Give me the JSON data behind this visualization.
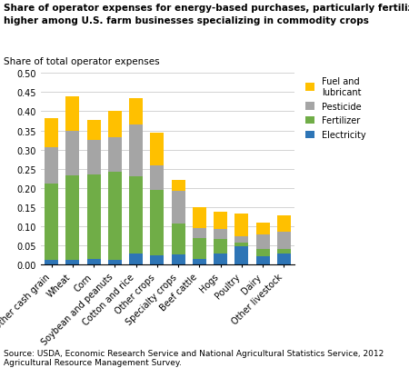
{
  "categories": [
    "Other cash grain",
    "Wheat",
    "Corn",
    "Soybean and peanuts",
    "Cotton and rice",
    "Other crops",
    "Specialty crops",
    "Beef cattle",
    "Hogs",
    "Poultry",
    "Dairy",
    "Other livestock"
  ],
  "electricity": [
    0.012,
    0.013,
    0.015,
    0.012,
    0.03,
    0.025,
    0.027,
    0.015,
    0.028,
    0.048,
    0.022,
    0.03
  ],
  "fertilizer": [
    0.2,
    0.22,
    0.22,
    0.23,
    0.2,
    0.17,
    0.08,
    0.055,
    0.04,
    0.01,
    0.018,
    0.01
  ],
  "pesticide": [
    0.095,
    0.115,
    0.09,
    0.09,
    0.135,
    0.065,
    0.085,
    0.025,
    0.025,
    0.015,
    0.04,
    0.045
  ],
  "fuel": [
    0.075,
    0.09,
    0.053,
    0.068,
    0.07,
    0.085,
    0.03,
    0.055,
    0.045,
    0.06,
    0.03,
    0.043
  ],
  "colors": {
    "electricity": "#2e75b6",
    "fertilizer": "#70ad47",
    "pesticide": "#a5a5a5",
    "fuel": "#ffc000"
  },
  "title_line1": "Share of operator expenses for energy-based purchases, particularly fertilizer, typically",
  "title_line2": "higher among U.S. farm businesses specializing in commodity crops",
  "ylabel": "Share of total operator expenses",
  "ylim": [
    0,
    0.5
  ],
  "yticks": [
    0,
    0.05,
    0.1,
    0.15,
    0.2,
    0.25,
    0.3,
    0.35,
    0.4,
    0.45,
    0.5
  ],
  "source": "Source: USDA, Economic Research Service and National Agricultural Statistics Service, 2012\nAgricultural Resource Management Survey.",
  "legend_labels": [
    "Fuel and\nlubricant",
    "Pesticide",
    "Fertilizer",
    "Electricity"
  ],
  "legend_colors": [
    "#ffc000",
    "#a5a5a5",
    "#70ad47",
    "#2e75b6"
  ]
}
